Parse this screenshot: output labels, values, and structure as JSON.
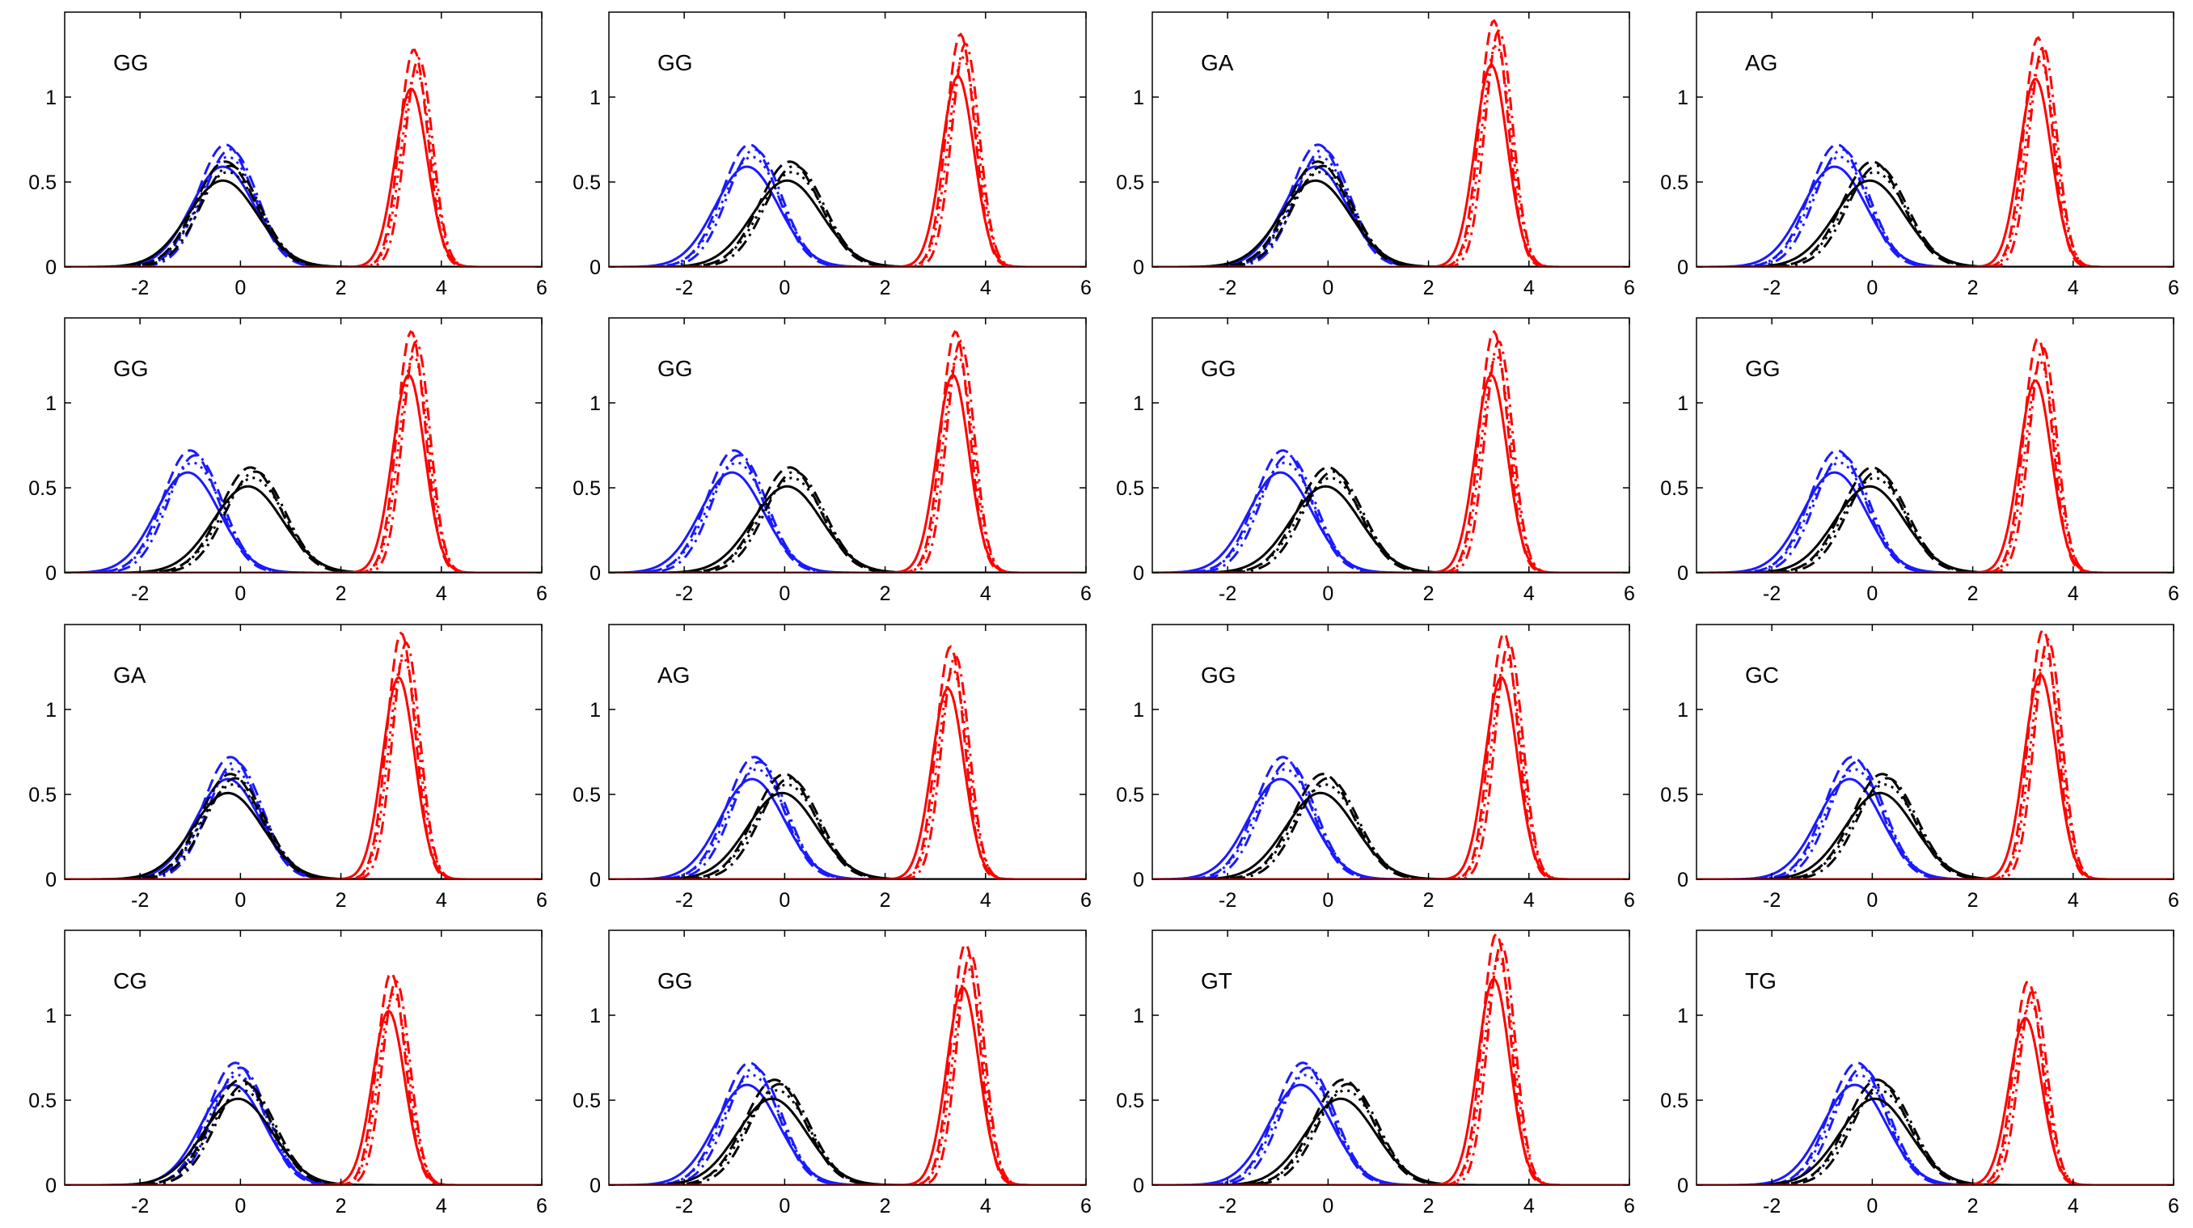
{
  "chart_data": {
    "type": "line",
    "layout": "4 rows x 4 columns of density plots",
    "xlim": [
      -3.5,
      6
    ],
    "ylim": [
      0,
      1.5
    ],
    "xticks": [
      -2,
      0,
      2,
      4,
      6
    ],
    "yticks": [
      0,
      0.5,
      1
    ],
    "xtick_labels": [
      "-2",
      "0",
      "2",
      "4",
      "6"
    ],
    "ytick_labels": [
      "0",
      "0.5",
      "1"
    ],
    "grid": false,
    "colors": {
      "blue": "#1a1aff",
      "black": "#000000",
      "red": "#ff0000",
      "dark_red": "#8b0000"
    },
    "line_styles": [
      "solid",
      "dashed",
      "dashdot",
      "dotted"
    ],
    "panels": [
      {
        "label": "GG",
        "blue_peak": -0.3,
        "black_peak": -0.3,
        "red_peak": 3.45,
        "red_max": 1.28
      },
      {
        "label": "GG",
        "blue_peak": -0.7,
        "black_peak": 0.1,
        "red_peak": 3.5,
        "red_max": 1.37
      },
      {
        "label": "GA",
        "blue_peak": -0.2,
        "black_peak": -0.2,
        "red_peak": 3.3,
        "red_max": 1.45
      },
      {
        "label": "AG",
        "blue_peak": -0.7,
        "black_peak": 0.0,
        "red_peak": 3.3,
        "red_max": 1.35
      },
      {
        "label": "GG",
        "blue_peak": -1.0,
        "black_peak": 0.2,
        "red_peak": 3.4,
        "red_max": 1.42
      },
      {
        "label": "GG",
        "blue_peak": -1.0,
        "black_peak": 0.1,
        "red_peak": 3.4,
        "red_max": 1.42
      },
      {
        "label": "GG",
        "blue_peak": -0.9,
        "black_peak": 0.0,
        "red_peak": 3.3,
        "red_max": 1.42
      },
      {
        "label": "GG",
        "blue_peak": -0.7,
        "black_peak": 0.0,
        "red_peak": 3.3,
        "red_max": 1.38
      },
      {
        "label": "GA",
        "blue_peak": -0.2,
        "black_peak": -0.2,
        "red_peak": 3.2,
        "red_max": 1.45
      },
      {
        "label": "AG",
        "blue_peak": -0.6,
        "black_peak": 0.0,
        "red_peak": 3.3,
        "red_max": 1.37
      },
      {
        "label": "GG",
        "blue_peak": -0.9,
        "black_peak": -0.1,
        "red_peak": 3.5,
        "red_max": 1.45
      },
      {
        "label": "GC",
        "blue_peak": -0.4,
        "black_peak": 0.2,
        "red_peak": 3.4,
        "red_max": 1.47
      },
      {
        "label": "CG",
        "blue_peak": -0.1,
        "black_peak": 0.0,
        "red_peak": 3.0,
        "red_max": 1.25
      },
      {
        "label": "GG",
        "blue_peak": -0.7,
        "black_peak": -0.2,
        "red_peak": 3.6,
        "red_max": 1.42
      },
      {
        "label": "GT",
        "blue_peak": -0.5,
        "black_peak": 0.3,
        "red_peak": 3.35,
        "red_max": 1.48
      },
      {
        "label": "TG",
        "blue_peak": -0.3,
        "black_peak": 0.1,
        "red_peak": 3.1,
        "red_max": 1.2
      }
    ]
  }
}
